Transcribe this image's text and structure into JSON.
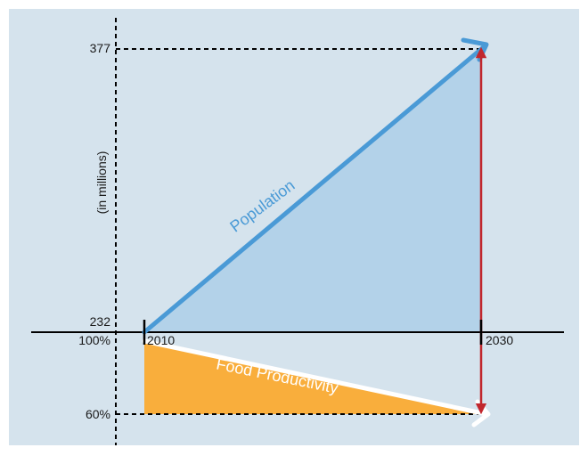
{
  "chart_data": {
    "type": "area",
    "title": "",
    "xlabel": "",
    "ylabel": "(in millions)",
    "x": [
      "2010",
      "2030"
    ],
    "series": [
      {
        "name": "Population",
        "axis": "millions",
        "x": [
          "2010",
          "2030"
        ],
        "values": [
          232,
          377
        ],
        "color": "#4a9ad6",
        "fill": "#b3d2e9"
      },
      {
        "name": "Food Productivity",
        "axis": "percent",
        "x": [
          "2010",
          "2030"
        ],
        "values": [
          100,
          60
        ],
        "color": "#ffffff",
        "fill": "#f9ae3c"
      }
    ],
    "x_ticks": [
      "2010",
      "2030"
    ],
    "y_ticks_population": [
      "232",
      "377"
    ],
    "y_ticks_productivity": [
      "100%",
      "60%"
    ],
    "gap_indicator_color": "#c1272d",
    "background": "#d5e3ed",
    "grid": false
  }
}
